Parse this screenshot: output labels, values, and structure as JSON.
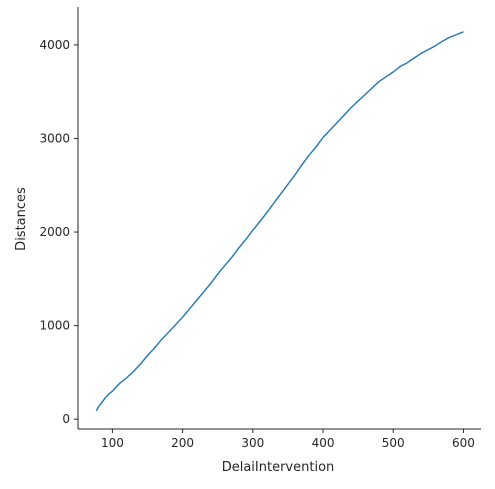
{
  "colors": {
    "line": "#1f77b4",
    "axis": "#262626",
    "background": "#ffffff"
  },
  "chart_data": {
    "type": "line",
    "title": "",
    "xlabel": "DelaiIntervention",
    "ylabel": "Distances",
    "xlim": [
      51,
      625
    ],
    "ylim": [
      -105,
      4405
    ],
    "xticks": [
      100,
      200,
      300,
      400,
      500,
      600
    ],
    "yticks": [
      0,
      1000,
      2000,
      3000,
      4000
    ],
    "grid": false,
    "legend": "none",
    "series": [
      {
        "x": [
          77,
          80,
          85,
          90,
          95,
          100,
          110,
          120,
          130,
          140,
          150,
          160,
          170,
          180,
          190,
          200,
          210,
          220,
          230,
          240,
          250,
          260,
          270,
          280,
          290,
          300,
          310,
          320,
          330,
          340,
          350,
          360,
          370,
          380,
          390,
          400,
          410,
          420,
          430,
          440,
          450,
          460,
          470,
          480,
          490,
          500,
          510,
          520,
          530,
          540,
          550,
          560,
          570,
          580,
          590,
          600
        ],
        "y": [
          90,
          130,
          180,
          230,
          270,
          300,
          380,
          440,
          510,
          590,
          680,
          760,
          850,
          930,
          1010,
          1090,
          1180,
          1270,
          1360,
          1450,
          1550,
          1640,
          1730,
          1830,
          1920,
          2020,
          2110,
          2210,
          2310,
          2410,
          2510,
          2610,
          2720,
          2820,
          2910,
          3010,
          3090,
          3170,
          3250,
          3330,
          3400,
          3470,
          3540,
          3610,
          3660,
          3710,
          3770,
          3810,
          3860,
          3910,
          3950,
          3990,
          4040,
          4080,
          4110,
          4140
        ]
      }
    ]
  }
}
